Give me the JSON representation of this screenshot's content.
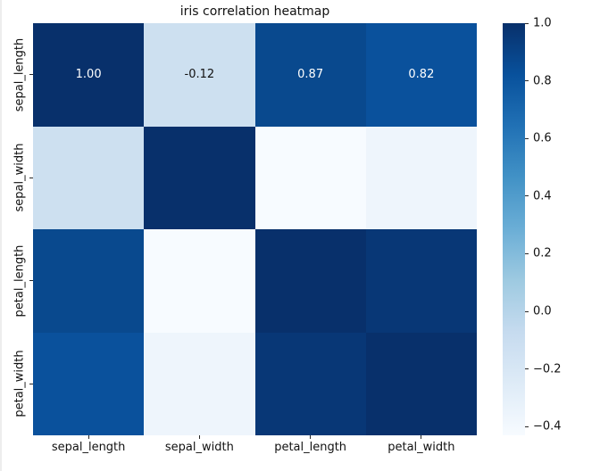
{
  "figure": {
    "background": "#ffffff",
    "window_edge_color": "#ededed",
    "text_color": "#111111",
    "tick_mark_color": "#262626"
  },
  "chart_data": {
    "type": "heatmap",
    "title": "iris correlation heatmap",
    "categories": [
      "sepal_length",
      "sepal_width",
      "petal_length",
      "petal_width"
    ],
    "x_tick_labels": [
      "sepal_length",
      "sepal_width",
      "petal_length",
      "petal_width"
    ],
    "y_tick_labels": [
      "sepal_length",
      "sepal_width",
      "petal_length",
      "petal_width"
    ],
    "matrix": [
      [
        1.0,
        -0.12,
        0.87,
        0.82
      ],
      [
        -0.12,
        1.0,
        -0.43,
        -0.37
      ],
      [
        0.87,
        -0.43,
        1.0,
        0.96
      ],
      [
        0.82,
        -0.37,
        0.96,
        1.0
      ]
    ],
    "cell_colors": [
      [
        "#08306b",
        "#cde0f0",
        "#09498e",
        "#0a519c"
      ],
      [
        "#cde0f0",
        "#08306b",
        "#f7fbff",
        "#eef5fc"
      ],
      [
        "#09498e",
        "#f7fbff",
        "#08306b",
        "#083776"
      ],
      [
        "#0a519c",
        "#eef5fc",
        "#083776",
        "#08306b"
      ]
    ],
    "annotations": [
      [
        "1.00",
        "-0.12",
        "0.87",
        "0.82"
      ],
      [
        null,
        null,
        null,
        null
      ],
      [
        null,
        null,
        null,
        null
      ],
      [
        null,
        null,
        null,
        null
      ]
    ],
    "annotation_colors": [
      [
        "#ffffff",
        "#111111",
        "#ffffff",
        "#ffffff"
      ],
      [
        null,
        null,
        null,
        null
      ],
      [
        null,
        null,
        null,
        null
      ],
      [
        null,
        null,
        null,
        null
      ]
    ],
    "colormap": "Blues",
    "legend_position": "right",
    "colorbar": {
      "vmin": -0.43,
      "vmax": 1.0,
      "ticks": [
        {
          "value": 1.0,
          "label": "1.0"
        },
        {
          "value": 0.8,
          "label": "0.8"
        },
        {
          "value": 0.6,
          "label": "0.6"
        },
        {
          "value": 0.4,
          "label": "0.4"
        },
        {
          "value": 0.2,
          "label": "0.2"
        },
        {
          "value": 0.0,
          "label": "0.0"
        },
        {
          "value": -0.2,
          "label": "−0.2"
        },
        {
          "value": -0.4,
          "label": "−0.4"
        }
      ],
      "gradient": [
        {
          "pos": 0,
          "color": "#08306b"
        },
        {
          "pos": 12.5,
          "color": "#08519c"
        },
        {
          "pos": 25,
          "color": "#2171b5"
        },
        {
          "pos": 37.5,
          "color": "#4292c6"
        },
        {
          "pos": 50,
          "color": "#6baed6"
        },
        {
          "pos": 62.5,
          "color": "#9ecae1"
        },
        {
          "pos": 75,
          "color": "#c6dbef"
        },
        {
          "pos": 87.5,
          "color": "#deebf7"
        },
        {
          "pos": 100,
          "color": "#f7fbff"
        }
      ]
    }
  }
}
